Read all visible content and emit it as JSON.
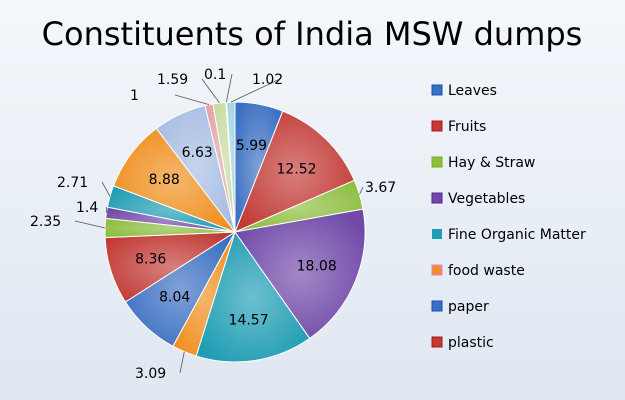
{
  "chart_data": {
    "type": "pie",
    "title": "Constituents of India MSW dumps",
    "slices": [
      {
        "label": "Leaves",
        "value": 5.99,
        "color": "#3a6fc1",
        "show_label": "5.99"
      },
      {
        "label": "Fruits",
        "value": 12.52,
        "color": "#c23a35",
        "show_label": "12.52"
      },
      {
        "label": "Hay & Straw",
        "value": 3.67,
        "color": "#8cbd3f",
        "show_label": "3.67"
      },
      {
        "label": "Vegetables",
        "value": 18.08,
        "color": "#7048a8",
        "show_label": "18.08"
      },
      {
        "label": "Fine Organic Matter",
        "value": 14.57,
        "color": "#1f9db3",
        "show_label": "14.57"
      },
      {
        "label": "food waste",
        "value": 3.09,
        "color": "#ef8f1f",
        "show_label": "3.09"
      },
      {
        "label": "paper",
        "value": 8.04,
        "color": "#3a6fc1",
        "show_label": "8.04"
      },
      {
        "label": "plastic",
        "value": 8.36,
        "color": "#c23a35",
        "show_label": "8.36"
      },
      {
        "label": "",
        "value": 2.35,
        "color": "#8cbd3f",
        "show_label": "2.35"
      },
      {
        "label": "",
        "value": 1.4,
        "color": "#7048a8",
        "show_label": "1.4"
      },
      {
        "label": "",
        "value": 2.71,
        "color": "#1f9db3",
        "show_label": "2.71"
      },
      {
        "label": "",
        "value": 8.88,
        "color": "#ef8f1f",
        "show_label": "8.88"
      },
      {
        "label": "",
        "value": 6.63,
        "color": "#a7bde3",
        "show_label": "6.63"
      },
      {
        "label": "",
        "value": 1.0,
        "color": "#e3a4a4",
        "show_label": "1"
      },
      {
        "label": "",
        "value": 1.59,
        "color": "#c7dba1",
        "show_label": "1.59"
      },
      {
        "label": "",
        "value": 0.1,
        "color": "#b9a9d3",
        "show_label": "0.1"
      },
      {
        "label": "",
        "value": 1.02,
        "color": "#a3d5df",
        "show_label": "1.02"
      }
    ],
    "legend": [
      {
        "label": "Leaves",
        "color": "#3a6fc1"
      },
      {
        "label": "Fruits",
        "color": "#c23a35"
      },
      {
        "label": "Hay & Straw",
        "color": "#8cbd3f"
      },
      {
        "label": "Vegetables",
        "color": "#7048a8"
      },
      {
        "label": "Fine Organic Matter",
        "color": "#1f9db3"
      },
      {
        "label": "food waste",
        "color": "#ef8f1f"
      },
      {
        "label": "paper",
        "color": "#3a6fc1"
      },
      {
        "label": "plastic",
        "color": "#c23a35"
      }
    ],
    "legend_position": "right"
  }
}
